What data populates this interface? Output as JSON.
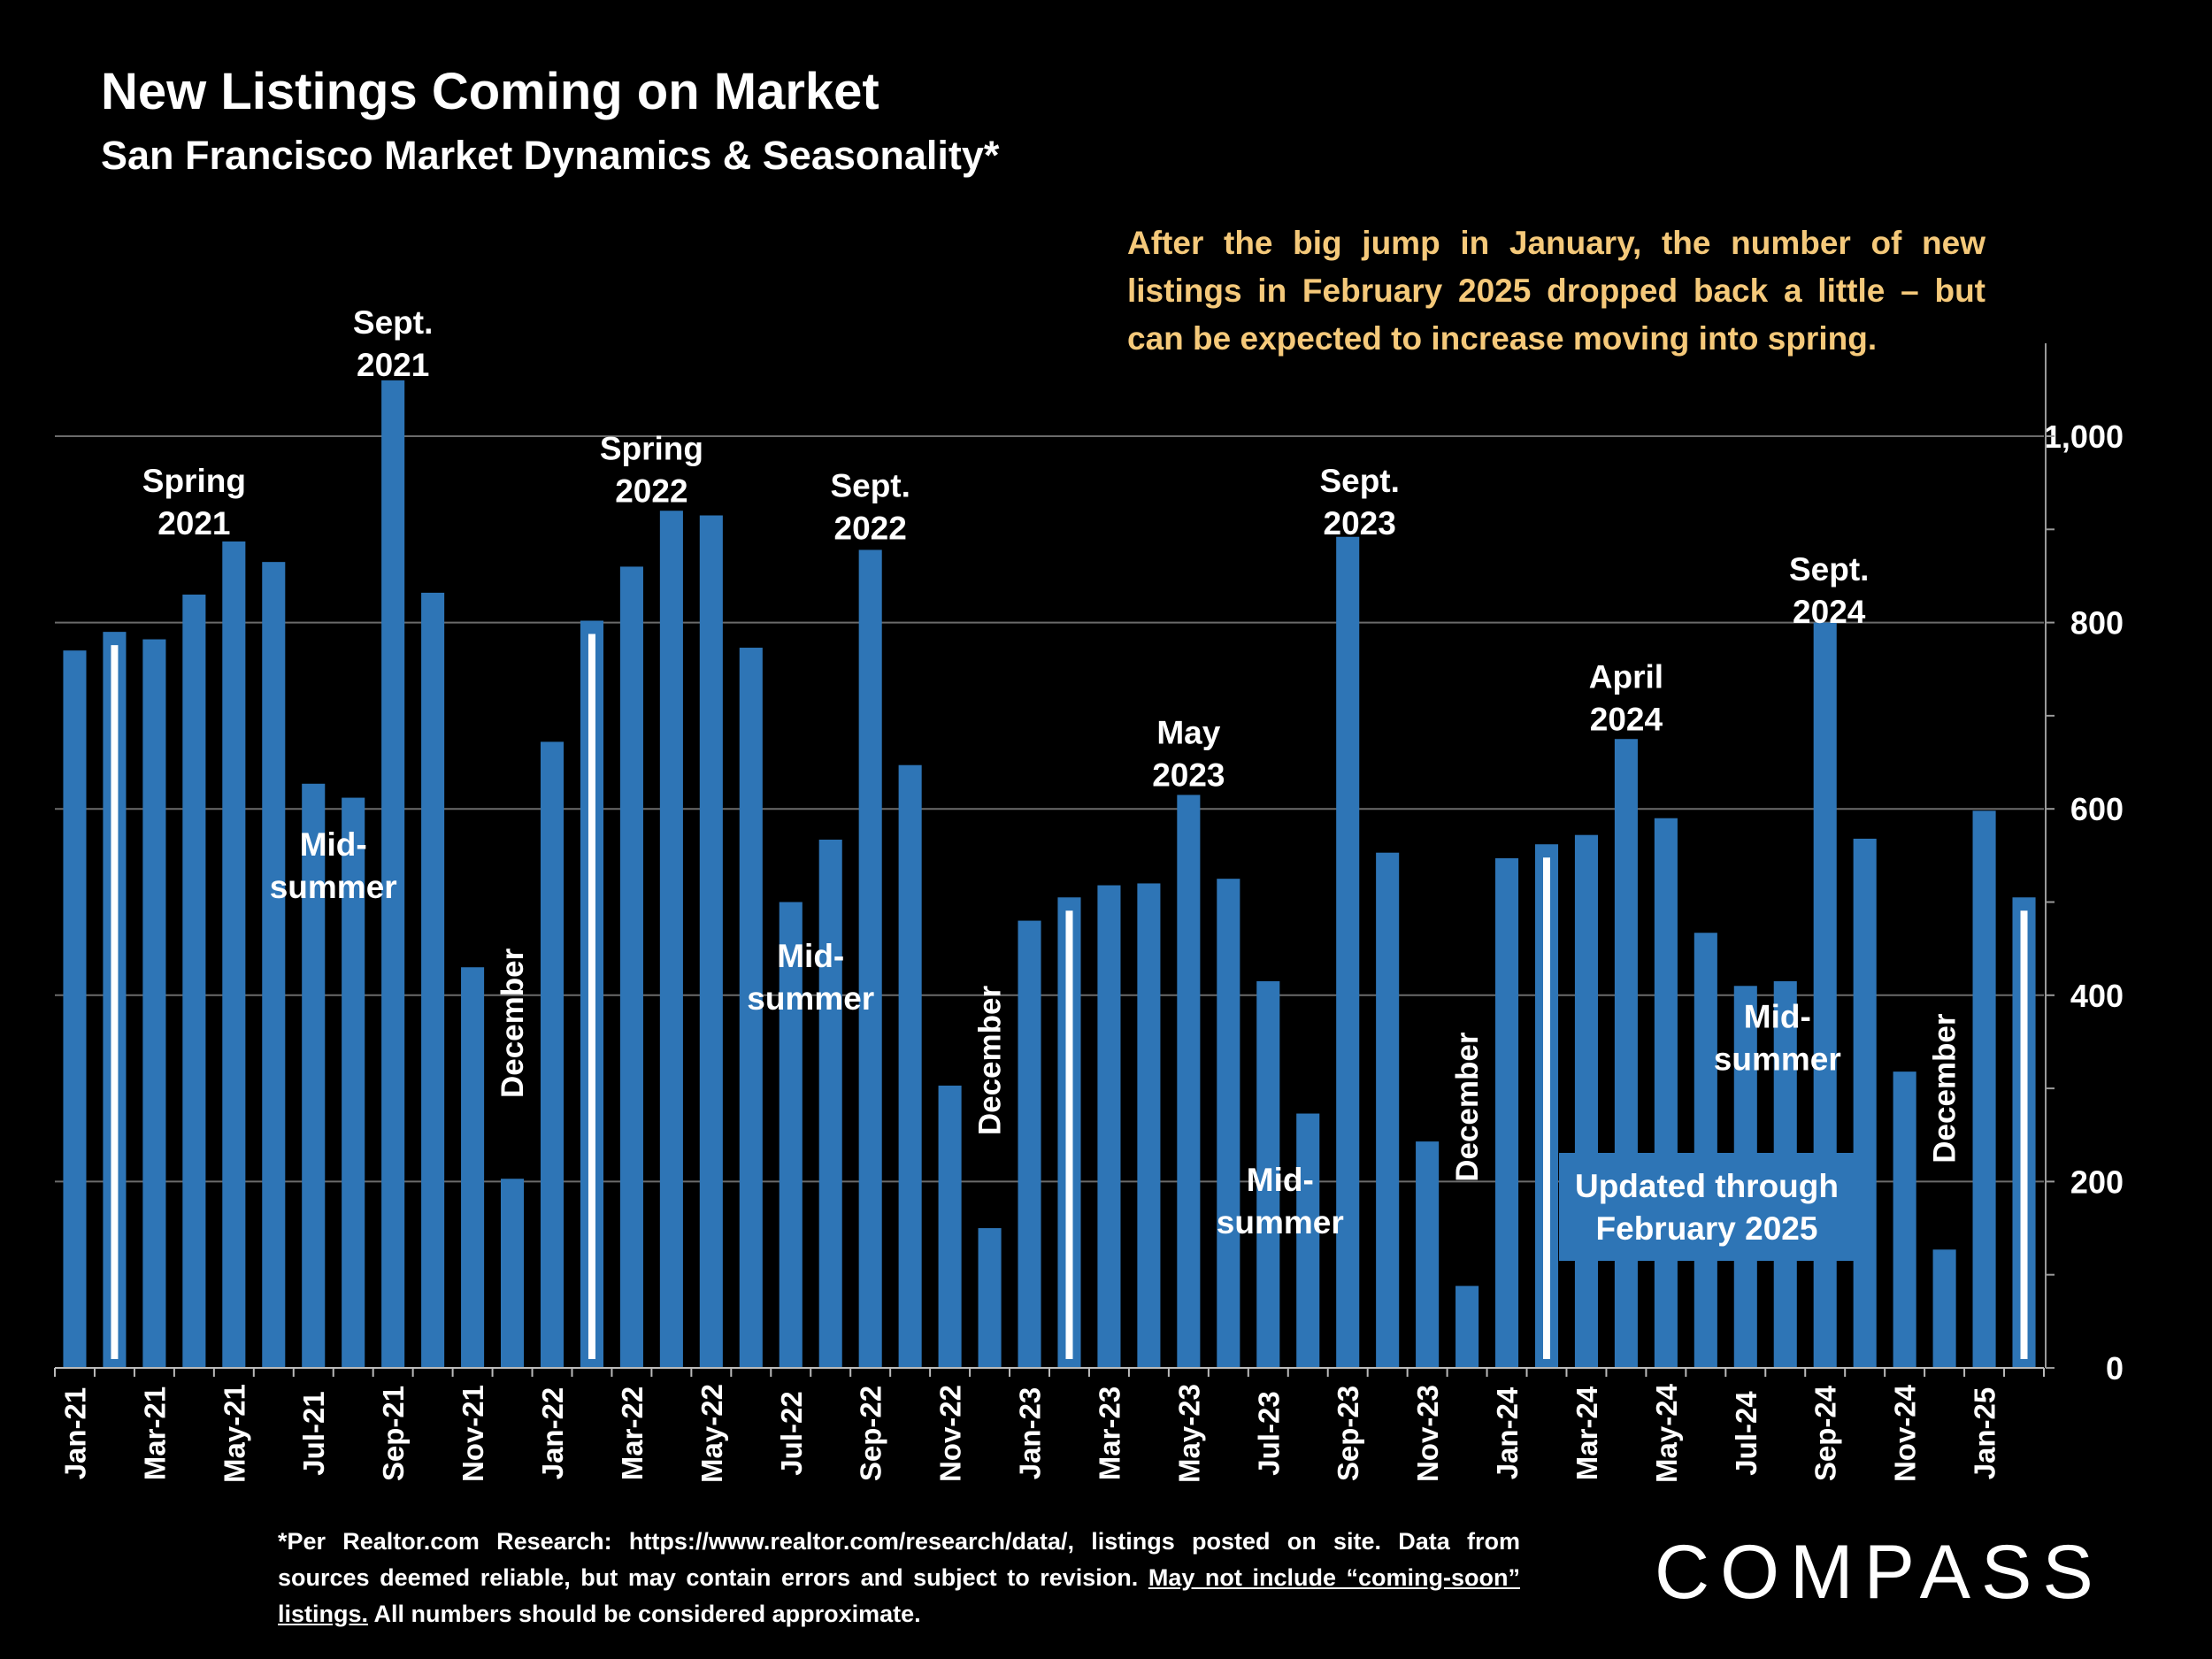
{
  "chart_data": {
    "type": "bar",
    "title": "New Listings Coming on Market",
    "subtitle": "San Francisco Market Dynamics & Seasonality*",
    "ylim": [
      0,
      1100
    ],
    "yticks": [
      "0",
      "200",
      "400",
      "600",
      "800",
      "1,000"
    ],
    "ytick_values": [
      0,
      200,
      400,
      600,
      800,
      1000
    ],
    "axis_position": "right",
    "grid": true,
    "categories": [
      "Jan-21",
      "Feb-21",
      "Mar-21",
      "Apr-21",
      "May-21",
      "Jun-21",
      "Jul-21",
      "Aug-21",
      "Sep-21",
      "Oct-21",
      "Nov-21",
      "Dec-21",
      "Jan-22",
      "Feb-22",
      "Mar-22",
      "Apr-22",
      "May-22",
      "Jun-22",
      "Jul-22",
      "Aug-22",
      "Sep-22",
      "Oct-22",
      "Nov-22",
      "Dec-22",
      "Jan-23",
      "Feb-23",
      "Mar-23",
      "Apr-23",
      "May-23",
      "Jun-23",
      "Jul-23",
      "Aug-23",
      "Sep-23",
      "Oct-23",
      "Nov-23",
      "Dec-23",
      "Jan-24",
      "Feb-24",
      "Mar-24",
      "Apr-24",
      "May-24",
      "Jun-24",
      "Jul-24",
      "Aug-24",
      "Sep-24",
      "Oct-24",
      "Nov-24",
      "Dec-24",
      "Jan-25",
      "Feb-25"
    ],
    "xtick_labels": [
      "Jan-21",
      "Mar-21",
      "May-21",
      "Jul-21",
      "Sep-21",
      "Nov-21",
      "Jan-22",
      "Mar-22",
      "May-22",
      "Jul-22",
      "Sep-22",
      "Nov-22",
      "Jan-23",
      "Mar-23",
      "May-23",
      "Jul-23",
      "Sep-23",
      "Nov-23",
      "Jan-24",
      "Mar-24",
      "May-24",
      "Jul-24",
      "Sep-24",
      "Nov-24",
      "Jan-25"
    ],
    "values": [
      770,
      790,
      782,
      830,
      887,
      865,
      627,
      612,
      1060,
      832,
      430,
      203,
      672,
      802,
      860,
      920,
      915,
      773,
      500,
      567,
      878,
      647,
      303,
      150,
      480,
      505,
      518,
      520,
      615,
      525,
      415,
      273,
      892,
      553,
      243,
      88,
      547,
      562,
      572,
      675,
      590,
      467,
      410,
      415,
      800,
      568,
      318,
      127,
      598,
      505
    ],
    "february_markers": [
      "Feb-21",
      "Feb-22",
      "Feb-23",
      "Feb-24",
      "Feb-25"
    ],
    "bar_color": "#2e75b6",
    "marker_color": "#ffffff",
    "annotations": [
      {
        "lines": [
          "Spring",
          "2021"
        ],
        "category": "Apr-21",
        "value": 940
      },
      {
        "lines": [
          "Sept.",
          "2021"
        ],
        "category": "Sep-21",
        "value": 1110
      },
      {
        "lines": [
          "Mid-",
          "summer"
        ],
        "category": "Jul-21",
        "value": 550,
        "offset": 0.5
      },
      {
        "lines": [
          "December"
        ],
        "category": "Dec-21",
        "value": 370,
        "vertical": true
      },
      {
        "lines": [
          "Spring",
          "2022"
        ],
        "category": "Apr-22",
        "value": 975,
        "offset": -0.5
      },
      {
        "lines": [
          "Sept.",
          "2022"
        ],
        "category": "Sep-22",
        "value": 935
      },
      {
        "lines": [
          "Mid-",
          "summer"
        ],
        "category": "Jul-22",
        "value": 430,
        "offset": 0.5
      },
      {
        "lines": [
          "December"
        ],
        "category": "Dec-22",
        "value": 330,
        "vertical": true
      },
      {
        "lines": [
          "May",
          "2023"
        ],
        "category": "May-23",
        "value": 670,
        "offset": 0
      },
      {
        "lines": [
          "Sept.",
          "2023"
        ],
        "category": "Sep-23",
        "value": 940,
        "offset": 0.3
      },
      {
        "lines": [
          "Mid-",
          "summer"
        ],
        "category": "Jul-23",
        "value": 190,
        "offset": 0.3
      },
      {
        "lines": [
          "December"
        ],
        "category": "Dec-23",
        "value": 280,
        "vertical": true
      },
      {
        "lines": [
          "April",
          "2024"
        ],
        "category": "Apr-24",
        "value": 730
      },
      {
        "lines": [
          "Sept.",
          "2024"
        ],
        "category": "Sep-24",
        "value": 845,
        "offset": 0.1
      },
      {
        "lines": [
          "Mid-",
          "summer"
        ],
        "category": "Jul-24",
        "value": 365,
        "offset": 0.8
      },
      {
        "lines": [
          "December"
        ],
        "category": "Dec-24",
        "value": 300,
        "vertical": true
      }
    ],
    "updated_box": {
      "lines": [
        "Updated through",
        "February 2025"
      ],
      "color": "#2e75b6"
    }
  },
  "callout": "After the big jump in January, the number of new listings in February 2025 dropped back a little – but can be expected to increase moving into spring.",
  "footnote": {
    "text1": "*Per Realtor.com Research:  https://www.realtor.com/research/data/, listings posted on site. Data from sources deemed reliable, but may contain errors and subject to revision. ",
    "underlined": "May not include “coming-soon” listings.",
    "text2": " All numbers should be considered approximate."
  },
  "logo": "COMPASS"
}
